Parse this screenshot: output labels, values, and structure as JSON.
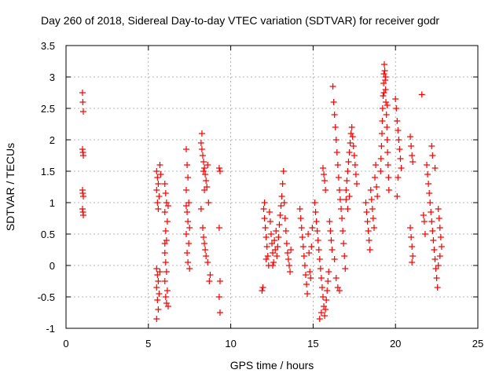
{
  "chart_data": {
    "type": "scatter",
    "title": "Day 260 of 2018, Sidereal Day-to-day VTEC variation (SDTVAR) for receiver godr",
    "xlabel": "GPS time / hours",
    "ylabel": "SDTVAR / TECUs",
    "xlim": [
      0,
      25
    ],
    "ylim": [
      -1,
      3.5
    ],
    "x_ticks": [
      0,
      5,
      10,
      15,
      20,
      25
    ],
    "y_ticks": [
      -1,
      -0.5,
      0,
      0.5,
      1,
      1.5,
      2,
      2.5,
      3,
      3.5
    ],
    "x_tick_labels": [
      "0",
      "5",
      "10",
      "15",
      "20",
      "25"
    ],
    "y_tick_labels": [
      "-1",
      "-0.5",
      "0",
      "0.5",
      "1",
      "1.5",
      "2",
      "2.5",
      "3",
      "3.5"
    ],
    "grid": true,
    "marker": "plus",
    "marker_color": "#ff0000",
    "series": [
      {
        "points": [
          [
            1.0,
            2.75
          ],
          [
            1.02,
            2.6
          ],
          [
            1.05,
            2.45
          ],
          [
            1.0,
            1.85
          ],
          [
            1.03,
            1.8
          ],
          [
            1.05,
            1.75
          ],
          [
            1.0,
            1.2
          ],
          [
            1.02,
            1.15
          ],
          [
            1.05,
            1.1
          ],
          [
            1.0,
            0.9
          ],
          [
            1.03,
            0.85
          ],
          [
            1.05,
            0.8
          ],
          [
            5.5,
            1.5
          ],
          [
            5.55,
            1.4
          ],
          [
            5.6,
            1.3
          ],
          [
            5.5,
            1.2
          ],
          [
            5.65,
            1.1
          ],
          [
            5.55,
            1.0
          ],
          [
            5.6,
            0.9
          ],
          [
            5.7,
            1.6
          ],
          [
            5.75,
            1.45
          ],
          [
            5.5,
            -0.05
          ],
          [
            5.55,
            -0.15
          ],
          [
            5.6,
            -0.25
          ],
          [
            5.5,
            -0.35
          ],
          [
            5.65,
            -0.45
          ],
          [
            5.55,
            -0.55
          ],
          [
            5.6,
            -0.7
          ],
          [
            5.5,
            -0.85
          ],
          [
            5.7,
            -0.1
          ],
          [
            6.0,
            1.3
          ],
          [
            6.05,
            1.15
          ],
          [
            6.1,
            1.0
          ],
          [
            6.0,
            0.85
          ],
          [
            6.15,
            0.7
          ],
          [
            6.05,
            0.55
          ],
          [
            6.1,
            0.4
          ],
          [
            6.2,
            0.95
          ],
          [
            6.0,
            0.2
          ],
          [
            6.05,
            0.05
          ],
          [
            6.1,
            -0.1
          ],
          [
            6.0,
            -0.25
          ],
          [
            6.15,
            -0.4
          ],
          [
            6.05,
            -0.5
          ],
          [
            6.1,
            -0.6
          ],
          [
            6.2,
            -0.65
          ],
          [
            6.0,
            0.35
          ],
          [
            7.3,
            1.85
          ],
          [
            7.35,
            1.6
          ],
          [
            7.4,
            1.4
          ],
          [
            7.3,
            1.2
          ],
          [
            7.45,
            1.0
          ],
          [
            7.35,
            0.85
          ],
          [
            7.4,
            0.7
          ],
          [
            7.3,
            0.5
          ],
          [
            7.45,
            0.35
          ],
          [
            7.35,
            0.2
          ],
          [
            7.4,
            0.05
          ],
          [
            7.5,
            -0.05
          ],
          [
            7.3,
            0.95
          ],
          [
            7.5,
            0.6
          ],
          [
            8.2,
            1.95
          ],
          [
            8.25,
            1.85
          ],
          [
            8.3,
            1.75
          ],
          [
            8.35,
            1.65
          ],
          [
            8.4,
            1.55
          ],
          [
            8.45,
            1.45
          ],
          [
            8.5,
            1.35
          ],
          [
            8.55,
            1.25
          ],
          [
            8.6,
            1.6
          ],
          [
            8.25,
            2.1
          ],
          [
            8.35,
            1.5
          ],
          [
            8.4,
            1.2
          ],
          [
            8.3,
            0.6
          ],
          [
            8.35,
            0.45
          ],
          [
            8.4,
            0.35
          ],
          [
            8.45,
            0.25
          ],
          [
            8.5,
            0.15
          ],
          [
            8.2,
            0.9
          ],
          [
            8.6,
            0.05
          ],
          [
            8.7,
            -0.25
          ],
          [
            8.75,
            -0.15
          ],
          [
            8.65,
            1.0
          ],
          [
            9.3,
            1.55
          ],
          [
            9.35,
            1.5
          ],
          [
            9.3,
            0.6
          ],
          [
            9.35,
            -0.25
          ],
          [
            9.3,
            -0.5
          ],
          [
            9.35,
            -0.75
          ],
          [
            11.9,
            -0.4
          ],
          [
            11.95,
            -0.35
          ],
          [
            12.0,
            0.9
          ],
          [
            12.05,
            0.75
          ],
          [
            12.1,
            0.6
          ],
          [
            12.15,
            0.45
          ],
          [
            12.2,
            0.3
          ],
          [
            12.25,
            0.15
          ],
          [
            12.3,
            0.0
          ],
          [
            12.35,
            0.85
          ],
          [
            12.4,
            0.7
          ],
          [
            12.45,
            0.5
          ],
          [
            12.5,
            0.35
          ],
          [
            12.55,
            0.2
          ],
          [
            12.6,
            0.05
          ],
          [
            12.65,
            0.4
          ],
          [
            12.7,
            0.25
          ],
          [
            12.75,
            0.55
          ],
          [
            12.8,
            0.15
          ],
          [
            12.85,
            0.3
          ],
          [
            12.9,
            0.45
          ],
          [
            12.95,
            0.65
          ],
          [
            13.0,
            0.8
          ],
          [
            13.05,
            0.95
          ],
          [
            13.1,
            1.1
          ],
          [
            13.15,
            1.3
          ],
          [
            13.2,
            1.5
          ],
          [
            13.25,
            1.0
          ],
          [
            13.3,
            0.75
          ],
          [
            13.35,
            0.55
          ],
          [
            13.4,
            0.35
          ],
          [
            13.45,
            0.2
          ],
          [
            13.5,
            0.1
          ],
          [
            13.55,
            0.0
          ],
          [
            13.6,
            -0.1
          ],
          [
            13.65,
            0.25
          ],
          [
            12.05,
            1.0
          ],
          [
            12.55,
            0.0
          ],
          [
            12.15,
            0.1
          ],
          [
            14.2,
            0.9
          ],
          [
            14.25,
            0.75
          ],
          [
            14.3,
            0.6
          ],
          [
            14.35,
            0.45
          ],
          [
            14.4,
            0.3
          ],
          [
            14.45,
            0.15
          ],
          [
            14.5,
            0.0
          ],
          [
            14.55,
            -0.15
          ],
          [
            14.6,
            -0.3
          ],
          [
            14.65,
            -0.45
          ],
          [
            14.7,
            0.5
          ],
          [
            14.75,
            0.2
          ],
          [
            14.8,
            -0.1
          ],
          [
            14.85,
            -0.2
          ],
          [
            14.9,
            0.3
          ],
          [
            14.95,
            0.6
          ],
          [
            15.1,
            1.0
          ],
          [
            15.15,
            0.85
          ],
          [
            15.2,
            0.7
          ],
          [
            15.25,
            0.55
          ],
          [
            15.3,
            0.4
          ],
          [
            15.35,
            0.25
          ],
          [
            15.4,
            0.1
          ],
          [
            15.45,
            -0.05
          ],
          [
            15.5,
            -0.2
          ],
          [
            15.55,
            -0.35
          ],
          [
            15.6,
            -0.5
          ],
          [
            15.65,
            -0.65
          ],
          [
            15.7,
            -0.8
          ],
          [
            15.75,
            -0.7
          ],
          [
            15.8,
            -0.55
          ],
          [
            15.85,
            -0.4
          ],
          [
            15.9,
            -0.25
          ],
          [
            15.95,
            -0.1
          ],
          [
            15.4,
            -0.85
          ],
          [
            15.5,
            -0.75
          ],
          [
            15.6,
            1.55
          ],
          [
            15.65,
            1.45
          ],
          [
            15.7,
            1.35
          ],
          [
            15.75,
            1.2
          ],
          [
            16.0,
            0.7
          ],
          [
            16.05,
            0.55
          ],
          [
            16.1,
            0.4
          ],
          [
            16.15,
            0.25
          ],
          [
            16.2,
            2.85
          ],
          [
            16.25,
            2.6
          ],
          [
            16.3,
            2.4
          ],
          [
            16.35,
            2.2
          ],
          [
            16.4,
            2.0
          ],
          [
            16.45,
            1.8
          ],
          [
            16.5,
            1.6
          ],
          [
            16.55,
            1.4
          ],
          [
            16.6,
            1.2
          ],
          [
            16.65,
            1.05
          ],
          [
            16.7,
            0.9
          ],
          [
            16.75,
            0.75
          ],
          [
            16.8,
            0.55
          ],
          [
            16.85,
            0.35
          ],
          [
            16.9,
            0.15
          ],
          [
            16.95,
            -0.05
          ],
          [
            16.3,
            0.1
          ],
          [
            16.4,
            -0.2
          ],
          [
            16.5,
            -0.35
          ],
          [
            16.6,
            -0.4
          ],
          [
            17.0,
            1.2
          ],
          [
            17.05,
            1.35
          ],
          [
            17.1,
            1.5
          ],
          [
            17.15,
            1.65
          ],
          [
            17.2,
            1.8
          ],
          [
            17.25,
            1.95
          ],
          [
            17.3,
            2.1
          ],
          [
            17.35,
            2.2
          ],
          [
            17.4,
            2.05
          ],
          [
            17.45,
            1.9
          ],
          [
            17.5,
            1.75
          ],
          [
            17.55,
            1.6
          ],
          [
            17.6,
            1.45
          ],
          [
            17.65,
            1.3
          ],
          [
            17.0,
            1.05
          ],
          [
            17.1,
            0.9
          ],
          [
            17.2,
            1.1
          ],
          [
            18.2,
            1.0
          ],
          [
            18.25,
            0.85
          ],
          [
            18.3,
            0.7
          ],
          [
            18.35,
            0.55
          ],
          [
            18.4,
            0.4
          ],
          [
            18.45,
            0.25
          ],
          [
            18.5,
            1.2
          ],
          [
            18.55,
            1.05
          ],
          [
            18.6,
            0.9
          ],
          [
            18.65,
            0.75
          ],
          [
            18.7,
            0.6
          ],
          [
            18.75,
            1.4
          ],
          [
            18.8,
            1.6
          ],
          [
            18.85,
            1.25
          ],
          [
            18.9,
            1.1
          ],
          [
            19.1,
            1.5
          ],
          [
            19.12,
            1.7
          ],
          [
            19.15,
            1.9
          ],
          [
            19.18,
            2.1
          ],
          [
            19.2,
            2.3
          ],
          [
            19.22,
            2.5
          ],
          [
            19.25,
            2.7
          ],
          [
            19.28,
            2.9
          ],
          [
            19.3,
            3.05
          ],
          [
            19.32,
            3.2
          ],
          [
            19.35,
            3.1
          ],
          [
            19.38,
            2.95
          ],
          [
            19.4,
            2.8
          ],
          [
            19.42,
            2.6
          ],
          [
            19.45,
            2.4
          ],
          [
            19.48,
            2.2
          ],
          [
            19.5,
            2.0
          ],
          [
            19.52,
            1.8
          ],
          [
            19.55,
            1.6
          ],
          [
            19.58,
            1.4
          ],
          [
            19.6,
            1.2
          ],
          [
            19.3,
            2.75
          ],
          [
            19.4,
            3.0
          ],
          [
            19.5,
            2.55
          ],
          [
            20.0,
            2.65
          ],
          [
            20.05,
            2.5
          ],
          [
            20.1,
            2.3
          ],
          [
            20.15,
            2.15
          ],
          [
            20.2,
            2.0
          ],
          [
            20.25,
            1.85
          ],
          [
            20.3,
            1.7
          ],
          [
            20.35,
            1.55
          ],
          [
            20.1,
            1.1
          ],
          [
            20.15,
            1.4
          ],
          [
            20.9,
            2.05
          ],
          [
            20.95,
            1.9
          ],
          [
            21.0,
            1.75
          ],
          [
            21.05,
            1.65
          ],
          [
            20.9,
            0.6
          ],
          [
            20.95,
            0.45
          ],
          [
            21.0,
            0.3
          ],
          [
            21.05,
            0.15
          ],
          [
            21.0,
            0.05
          ],
          [
            21.6,
            2.72
          ],
          [
            21.9,
            1.6
          ],
          [
            21.95,
            1.45
          ],
          [
            22.0,
            1.3
          ],
          [
            22.05,
            1.15
          ],
          [
            22.1,
            1.0
          ],
          [
            22.15,
            0.85
          ],
          [
            22.2,
            0.7
          ],
          [
            22.25,
            0.55
          ],
          [
            22.3,
            0.4
          ],
          [
            22.35,
            0.25
          ],
          [
            22.4,
            0.1
          ],
          [
            22.45,
            -0.05
          ],
          [
            22.5,
            -0.2
          ],
          [
            22.55,
            -0.35
          ],
          [
            22.6,
            0.9
          ],
          [
            22.65,
            0.75
          ],
          [
            22.7,
            0.6
          ],
          [
            22.75,
            0.45
          ],
          [
            22.8,
            0.3
          ],
          [
            22.7,
            0.15
          ],
          [
            22.6,
            0.0
          ],
          [
            22.2,
            1.9
          ],
          [
            22.25,
            1.75
          ],
          [
            22.4,
            1.55
          ],
          [
            21.7,
            0.8
          ],
          [
            21.75,
            0.7
          ],
          [
            21.8,
            0.5
          ]
        ]
      }
    ]
  }
}
